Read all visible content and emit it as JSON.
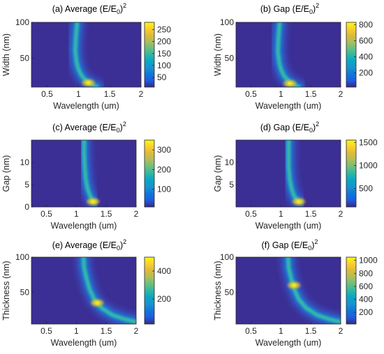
{
  "colormap": "parula",
  "chart_data": [
    {
      "type": "heatmap",
      "title_prefix": "(a) Average (E/E",
      "title_sub": "0",
      "title_close": ")",
      "title_sup": "2",
      "xlabel": "Wavelength (um)",
      "ylabel": "Width (nm)",
      "xlim": [
        0.25,
        2.0
      ],
      "ylim": [
        10,
        100
      ],
      "xticks": [
        0.5,
        1,
        1.5,
        2
      ],
      "xtick_labels": [
        "0.5",
        "1",
        "1.5",
        "2"
      ],
      "yticks": [
        50,
        100
      ],
      "ytick_labels": [
        "50",
        "100"
      ],
      "colorbar": {
        "min": 10,
        "max": 280,
        "ticks": [
          50,
          100,
          150,
          200,
          250
        ],
        "tick_labels": [
          "50",
          "100",
          "150",
          "200",
          "250"
        ]
      },
      "ridge": [
        [
          0.98,
          100
        ],
        [
          0.96,
          80
        ],
        [
          0.95,
          60
        ],
        [
          0.97,
          45
        ],
        [
          1.0,
          35
        ],
        [
          1.05,
          26
        ],
        [
          1.12,
          19
        ],
        [
          1.22,
          13
        ],
        [
          1.3,
          10
        ]
      ],
      "hotspot": [
        1.16,
        16
      ]
    },
    {
      "type": "heatmap",
      "title_prefix": "(b) Gap (E/E",
      "title_sub": "0",
      "title_close": ")",
      "title_sup": "2",
      "xlabel": "Wavelength (um)",
      "ylabel": "Width (nm)",
      "xlim": [
        0.25,
        2.0
      ],
      "ylim": [
        10,
        100
      ],
      "xticks": [
        0.5,
        1,
        1.5,
        2
      ],
      "xtick_labels": [
        "0.5",
        "1",
        "1.5",
        "2"
      ],
      "yticks": [
        50,
        100
      ],
      "ytick_labels": [
        "50",
        "100"
      ],
      "colorbar": {
        "min": 20,
        "max": 830,
        "ticks": [
          200,
          400,
          600,
          800
        ],
        "tick_labels": [
          "200",
          "400",
          "600",
          "800"
        ]
      },
      "ridge": [
        [
          0.98,
          100
        ],
        [
          0.96,
          80
        ],
        [
          0.95,
          60
        ],
        [
          0.97,
          45
        ],
        [
          1.0,
          35
        ],
        [
          1.05,
          26
        ],
        [
          1.12,
          19
        ],
        [
          1.22,
          13
        ],
        [
          1.3,
          10
        ]
      ],
      "hotspot": [
        1.15,
        15
      ]
    },
    {
      "type": "heatmap",
      "title_prefix": "(c) Average (E/E",
      "title_sub": "0",
      "title_close": ")",
      "title_sup": "2",
      "xlabel": "Wavelength (um)",
      "ylabel": "Gap (nm)",
      "xlim": [
        0.25,
        2.0
      ],
      "ylim": [
        0,
        15
      ],
      "xticks": [
        0.5,
        1,
        1.5,
        2
      ],
      "xtick_labels": [
        "0.5",
        "1",
        "1.5",
        "2"
      ],
      "yticks": [
        0,
        5,
        10
      ],
      "ytick_labels": [
        "0",
        "5",
        "10"
      ],
      "colorbar": {
        "min": 10,
        "max": 350,
        "ticks": [
          100,
          200,
          300
        ],
        "tick_labels": [
          "100",
          "200",
          "300"
        ]
      },
      "ridge": [
        [
          1.13,
          15
        ],
        [
          1.13,
          12
        ],
        [
          1.14,
          9
        ],
        [
          1.16,
          6
        ],
        [
          1.19,
          4
        ],
        [
          1.23,
          2.5
        ],
        [
          1.27,
          1.5
        ],
        [
          1.3,
          1
        ]
      ],
      "hotspot": [
        1.28,
        1.2
      ]
    },
    {
      "type": "heatmap",
      "title_prefix": "(d) Gap (E/E",
      "title_sub": "0",
      "title_close": ")",
      "title_sup": "2",
      "xlabel": "Wavelength (um)",
      "ylabel": "Gap (nm)",
      "xlim": [
        0.25,
        2.0
      ],
      "ylim": [
        0,
        15
      ],
      "xticks": [
        0.5,
        1,
        1.5,
        2
      ],
      "xtick_labels": [
        "0.5",
        "1",
        "1.5",
        "2"
      ],
      "yticks": [
        5,
        10
      ],
      "ytick_labels": [
        "5",
        "10"
      ],
      "colorbar": {
        "min": 100,
        "max": 1550,
        "ticks": [
          500,
          1000,
          1500
        ],
        "tick_labels": [
          "500",
          "1000",
          "1500"
        ]
      },
      "ridge": [
        [
          1.13,
          15
        ],
        [
          1.13,
          12
        ],
        [
          1.13,
          9
        ],
        [
          1.15,
          6
        ],
        [
          1.18,
          4
        ],
        [
          1.22,
          2.5
        ],
        [
          1.27,
          1.5
        ],
        [
          1.32,
          1
        ]
      ],
      "hotspot": [
        1.3,
        1.2
      ]
    },
    {
      "type": "heatmap",
      "title_prefix": "(e) Average (E/E",
      "title_sub": "0",
      "title_close": ")",
      "title_sup": "2",
      "xlabel": "Wavelength (um)",
      "ylabel": "Thickness (nm)",
      "xlim": [
        0.25,
        2.0
      ],
      "ylim": [
        5,
        100
      ],
      "xticks": [
        0.5,
        1,
        1.5,
        2
      ],
      "xtick_labels": [
        "0.5",
        "1",
        "1.5",
        "2"
      ],
      "yticks": [
        50,
        100
      ],
      "ytick_labels": [
        "50",
        "100"
      ],
      "colorbar": {
        "min": 20,
        "max": 500,
        "ticks": [
          200,
          400
        ],
        "tick_labels": [
          "200",
          "400"
        ]
      },
      "ridge": [
        [
          1.12,
          100
        ],
        [
          1.13,
          85
        ],
        [
          1.17,
          70
        ],
        [
          1.22,
          55
        ],
        [
          1.3,
          40
        ],
        [
          1.42,
          28
        ],
        [
          1.6,
          18
        ],
        [
          1.8,
          12
        ],
        [
          2.0,
          8
        ]
      ],
      "hotspot": [
        1.35,
        35
      ]
    },
    {
      "type": "heatmap",
      "title_prefix": "(f) Gap (E/E",
      "title_sub": "0",
      "title_close": ")",
      "title_sup": "2",
      "xlabel": "Wavelength (um)",
      "ylabel": "Thickness (nm)",
      "xlim": [
        0.25,
        2.0
      ],
      "ylim": [
        5,
        100
      ],
      "xticks": [
        0.5,
        1,
        1.5,
        2
      ],
      "xtick_labels": [
        "0.5",
        "1",
        "1.5",
        "2"
      ],
      "yticks": [
        50,
        100
      ],
      "ytick_labels": [
        "50",
        "100"
      ],
      "colorbar": {
        "min": 20,
        "max": 1050,
        "ticks": [
          200,
          400,
          600,
          800,
          1000
        ],
        "tick_labels": [
          "200",
          "400",
          "600",
          "800",
          "1000"
        ]
      },
      "ridge": [
        [
          1.12,
          100
        ],
        [
          1.13,
          85
        ],
        [
          1.17,
          70
        ],
        [
          1.22,
          55
        ],
        [
          1.3,
          40
        ],
        [
          1.42,
          28
        ],
        [
          1.6,
          18
        ],
        [
          1.8,
          12
        ],
        [
          2.0,
          8
        ]
      ],
      "hotspot": [
        1.22,
        60
      ]
    }
  ]
}
